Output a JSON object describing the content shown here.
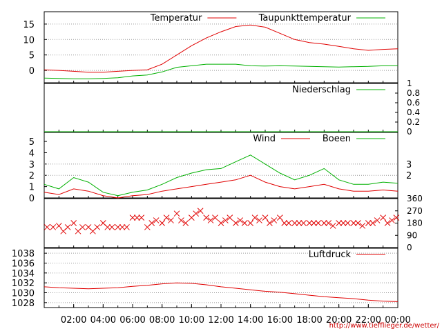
{
  "credit_url": "http://www.tiefflieger.de/wetter/",
  "colors": {
    "red": "#e00000",
    "green": "#00b000",
    "grid": "#999999",
    "frame": "#000000"
  },
  "chart_data": [
    {
      "type": "line",
      "panel": "temperature",
      "x_unit": "hours",
      "xlim": [
        0,
        24
      ],
      "ylim": [
        -4,
        19
      ],
      "yticks": [
        0,
        5,
        10,
        15
      ],
      "ytick_labels": [
        "0",
        "5",
        "10",
        "15"
      ],
      "grid": true,
      "legend_position": "top",
      "series": [
        {
          "name": "Temperatur",
          "color": "#e00000",
          "x": [
            0,
            1,
            2,
            3,
            4,
            5,
            6,
            7,
            8,
            9,
            10,
            11,
            12,
            13,
            14,
            15,
            16,
            17,
            18,
            19,
            20,
            21,
            22,
            23,
            24
          ],
          "values": [
            0.2,
            0,
            -0.3,
            -0.6,
            -0.6,
            -0.3,
            0,
            0.2,
            2,
            5,
            8,
            10.5,
            12.5,
            14.2,
            14.7,
            14,
            12,
            10,
            9,
            8.5,
            7.8,
            7,
            6.5,
            6.8,
            7
          ]
        },
        {
          "name": "Taupunkttemperatur",
          "color": "#00b000",
          "x": [
            0,
            1,
            2,
            3,
            4,
            5,
            6,
            7,
            8,
            9,
            10,
            11,
            12,
            13,
            14,
            15,
            16,
            17,
            18,
            19,
            20,
            21,
            22,
            23,
            24
          ],
          "values": [
            -2.5,
            -2.6,
            -2.7,
            -2.7,
            -2.6,
            -2.4,
            -1.8,
            -1.5,
            -0.5,
            1,
            1.5,
            2,
            2,
            2,
            1.5,
            1.4,
            1.5,
            1.4,
            1.3,
            1.2,
            1.1,
            1.2,
            1.3,
            1.5,
            1.5
          ]
        }
      ]
    },
    {
      "type": "line",
      "panel": "precipitation",
      "x_unit": "hours",
      "xlim": [
        0,
        24
      ],
      "ylim": [
        0,
        1
      ],
      "yticks": [
        0,
        0.2,
        0.4,
        0.6,
        0.8,
        1
      ],
      "ytick_labels": [
        "0",
        "0.2",
        "0.4",
        "0.6",
        "0.8",
        "1"
      ],
      "legend_position": "top-right",
      "series": [
        {
          "name": "Niederschlag",
          "color": "#00b000",
          "x": [
            0,
            24
          ],
          "values": [
            0,
            0
          ]
        }
      ]
    },
    {
      "type": "line",
      "panel": "wind",
      "x_unit": "hours",
      "xlim": [
        0,
        24
      ],
      "ylim": [
        0,
        5.8
      ],
      "yticks": [
        0,
        1,
        2,
        3,
        4,
        5
      ],
      "ytick_labels": [
        "0",
        "1",
        "2",
        "3",
        "4",
        "5"
      ],
      "right_ticks": [
        2,
        3
      ],
      "right_tick_labels": [
        "2",
        "3"
      ],
      "legend_position": "top-right",
      "series": [
        {
          "name": "Wind",
          "color": "#e00000",
          "x": [
            0,
            1,
            2,
            3,
            4,
            5,
            6,
            7,
            8,
            9,
            10,
            11,
            12,
            13,
            14,
            15,
            16,
            17,
            18,
            19,
            20,
            21,
            22,
            23,
            24
          ],
          "values": [
            0.5,
            0.3,
            0.8,
            0.6,
            0.2,
            0,
            0.2,
            0.3,
            0.6,
            0.8,
            1.0,
            1.2,
            1.4,
            1.6,
            2.0,
            1.4,
            1.0,
            0.8,
            1.0,
            1.2,
            0.8,
            0.6,
            0.6,
            0.7,
            0.6
          ]
        },
        {
          "name": "Boeen",
          "color": "#00b000",
          "x": [
            0,
            1,
            2,
            3,
            4,
            5,
            6,
            7,
            8,
            9,
            10,
            11,
            12,
            13,
            14,
            15,
            16,
            17,
            18,
            19,
            20,
            21,
            22,
            23,
            24
          ],
          "values": [
            1.2,
            0.8,
            1.8,
            1.4,
            0.5,
            0.2,
            0.5,
            0.7,
            1.2,
            1.8,
            2.2,
            2.5,
            2.6,
            3.2,
            3.8,
            3.0,
            2.2,
            1.6,
            2.0,
            2.6,
            1.6,
            1.2,
            1.2,
            1.4,
            1.3
          ]
        }
      ]
    },
    {
      "type": "scatter",
      "panel": "wind_direction",
      "x_unit": "hours",
      "xlim": [
        0,
        24
      ],
      "ylim": [
        0,
        360
      ],
      "yticks": [
        0,
        90,
        180,
        270,
        360
      ],
      "ytick_labels": [
        "0",
        "90",
        "180",
        "270",
        "360"
      ],
      "series": [
        {
          "name": "",
          "color": "#e00000",
          "marker": "x",
          "x": [
            0.2,
            0.6,
            1.0,
            1.3,
            1.6,
            2.0,
            2.3,
            2.6,
            3.0,
            3.3,
            3.6,
            4.0,
            4.3,
            4.6,
            5.0,
            5.3,
            5.6,
            6.0,
            6.3,
            6.6,
            7.0,
            7.3,
            7.6,
            8.0,
            8.3,
            8.6,
            9.0,
            9.3,
            9.6,
            10.0,
            10.3,
            10.6,
            11.0,
            11.3,
            11.6,
            12.0,
            12.3,
            12.6,
            13.0,
            13.3,
            13.6,
            14.0,
            14.3,
            14.6,
            15.0,
            15.3,
            15.6,
            16.0,
            16.3,
            16.6,
            17.0,
            17.3,
            17.6,
            18.0,
            18.3,
            18.6,
            19.0,
            19.3,
            19.6,
            20.0,
            20.3,
            20.6,
            21.0,
            21.3,
            21.6,
            22.0,
            22.3,
            22.6,
            23.0,
            23.3,
            23.6,
            23.9
          ],
          "values": [
            150,
            150,
            160,
            120,
            150,
            180,
            120,
            150,
            150,
            120,
            150,
            180,
            150,
            150,
            150,
            150,
            150,
            220,
            220,
            220,
            150,
            180,
            200,
            180,
            220,
            200,
            250,
            200,
            180,
            220,
            250,
            270,
            220,
            200,
            220,
            180,
            200,
            220,
            180,
            200,
            180,
            180,
            220,
            200,
            220,
            180,
            200,
            220,
            180,
            180,
            180,
            180,
            180,
            180,
            180,
            180,
            180,
            180,
            160,
            180,
            180,
            180,
            180,
            180,
            160,
            180,
            180,
            200,
            220,
            180,
            200,
            220
          ]
        }
      ]
    },
    {
      "type": "line",
      "panel": "pressure",
      "x_unit": "hours",
      "xlim": [
        0,
        24
      ],
      "ylim": [
        1027,
        1039
      ],
      "yticks": [
        1028,
        1030,
        1032,
        1034,
        1036,
        1038
      ],
      "ytick_labels": [
        "1028",
        "1030",
        "1032",
        "1034",
        "1036",
        "1038"
      ],
      "grid": true,
      "legend_position": "top-right",
      "series": [
        {
          "name": "Luftdruck",
          "color": "#e00000",
          "x": [
            0,
            1,
            2,
            3,
            4,
            5,
            6,
            7,
            8,
            9,
            10,
            11,
            12,
            13,
            14,
            15,
            16,
            17,
            18,
            19,
            20,
            21,
            22,
            23,
            24
          ],
          "values": [
            1031.2,
            1031.0,
            1030.9,
            1030.8,
            1030.9,
            1031.0,
            1031.3,
            1031.5,
            1031.8,
            1032.0,
            1031.9,
            1031.6,
            1031.2,
            1030.9,
            1030.6,
            1030.3,
            1030.1,
            1029.8,
            1029.5,
            1029.2,
            1029.0,
            1028.8,
            1028.5,
            1028.3,
            1028.2
          ]
        }
      ]
    }
  ],
  "x_axis": {
    "ticks": [
      2,
      4,
      6,
      8,
      10,
      12,
      14,
      16,
      18,
      20,
      22,
      24
    ],
    "labels": [
      "02:00",
      "04:00",
      "06:00",
      "08:00",
      "10:00",
      "12:00",
      "14:00",
      "16:00",
      "18:00",
      "20:00",
      "22:00",
      "00:00"
    ]
  }
}
